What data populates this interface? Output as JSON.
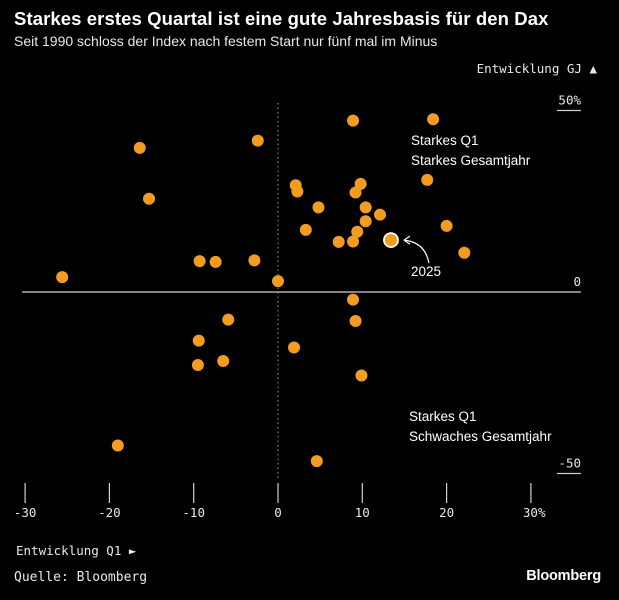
{
  "header": {
    "title": "Starkes erstes Quartal ist eine gute Jahresbasis für den Dax",
    "subtitle": "Seit 1990 schloss der Index nach festem Start nur fünf mal im Minus"
  },
  "footer": {
    "source": "Quelle: Bloomberg",
    "brand": "Bloomberg"
  },
  "chart_data": {
    "type": "scatter",
    "xlabel": "Entwicklung Q1 ►",
    "ylabel": "Entwicklung GJ ▲",
    "xlim": [
      -31,
      36
    ],
    "ylim": [
      -55,
      55
    ],
    "x_ticks": [
      {
        "value": -30,
        "label": "-30"
      },
      {
        "value": -20,
        "label": "-20"
      },
      {
        "value": -10,
        "label": "-10"
      },
      {
        "value": 0,
        "label": "0"
      },
      {
        "value": 10,
        "label": "10"
      },
      {
        "value": 20,
        "label": "20"
      },
      {
        "value": 30,
        "label": "30%"
      }
    ],
    "y_ticks": [
      {
        "value": 50,
        "label": "50%"
      },
      {
        "value": 0,
        "label": "0"
      },
      {
        "value": -50,
        "label": "-50"
      }
    ],
    "annotations": {
      "top_right": [
        "Starkes Q1",
        "Starkes Gesamtjahr"
      ],
      "bottom_right": [
        "Starkes Q1",
        "Schwaches Gesamtjahr"
      ],
      "highlight_label": "2025"
    },
    "highlight": {
      "x": 13.4,
      "y": 14.3
    },
    "points": [
      {
        "x": 8.9,
        "y": 47.2
      },
      {
        "x": 18.4,
        "y": 47.6
      },
      {
        "x": -16.4,
        "y": 39.7
      },
      {
        "x": -2.4,
        "y": 41.7
      },
      {
        "x": 17.7,
        "y": 30.9
      },
      {
        "x": 9.8,
        "y": 29.8
      },
      {
        "x": 2.1,
        "y": 29.4
      },
      {
        "x": 2.3,
        "y": 27.7
      },
      {
        "x": 9.2,
        "y": 27.4
      },
      {
        "x": -15.3,
        "y": 25.7
      },
      {
        "x": 4.8,
        "y": 23.3
      },
      {
        "x": 10.4,
        "y": 23.3
      },
      {
        "x": 12.1,
        "y": 21.3
      },
      {
        "x": 10.4,
        "y": 19.5
      },
      {
        "x": 20.0,
        "y": 18.2
      },
      {
        "x": 3.3,
        "y": 17.1
      },
      {
        "x": 9.4,
        "y": 16.6
      },
      {
        "x": 7.2,
        "y": 13.8
      },
      {
        "x": 8.9,
        "y": 13.9
      },
      {
        "x": 22.1,
        "y": 10.8
      },
      {
        "x": -9.3,
        "y": 8.5
      },
      {
        "x": -7.4,
        "y": 8.3
      },
      {
        "x": -2.8,
        "y": 8.7
      },
      {
        "x": -25.6,
        "y": 4.1
      },
      {
        "x": 0.0,
        "y": 3.0
      },
      {
        "x": 8.9,
        "y": -2.1
      },
      {
        "x": -5.9,
        "y": -7.6
      },
      {
        "x": 9.2,
        "y": -8.0
      },
      {
        "x": -9.4,
        "y": -13.4
      },
      {
        "x": 1.9,
        "y": -15.3
      },
      {
        "x": -6.5,
        "y": -19.0
      },
      {
        "x": -9.5,
        "y": -20.1
      },
      {
        "x": 9.9,
        "y": -23.0
      },
      {
        "x": -19.0,
        "y": -42.3
      },
      {
        "x": 4.6,
        "y": -46.6
      }
    ],
    "colors": {
      "points": "#f39c1f",
      "highlight": "#f39c1f",
      "highlight_ring": "#ffffff",
      "axis": "#d0d0d0",
      "zero_dotted": "#9a9a9a",
      "text": "#e8e8e8"
    }
  }
}
